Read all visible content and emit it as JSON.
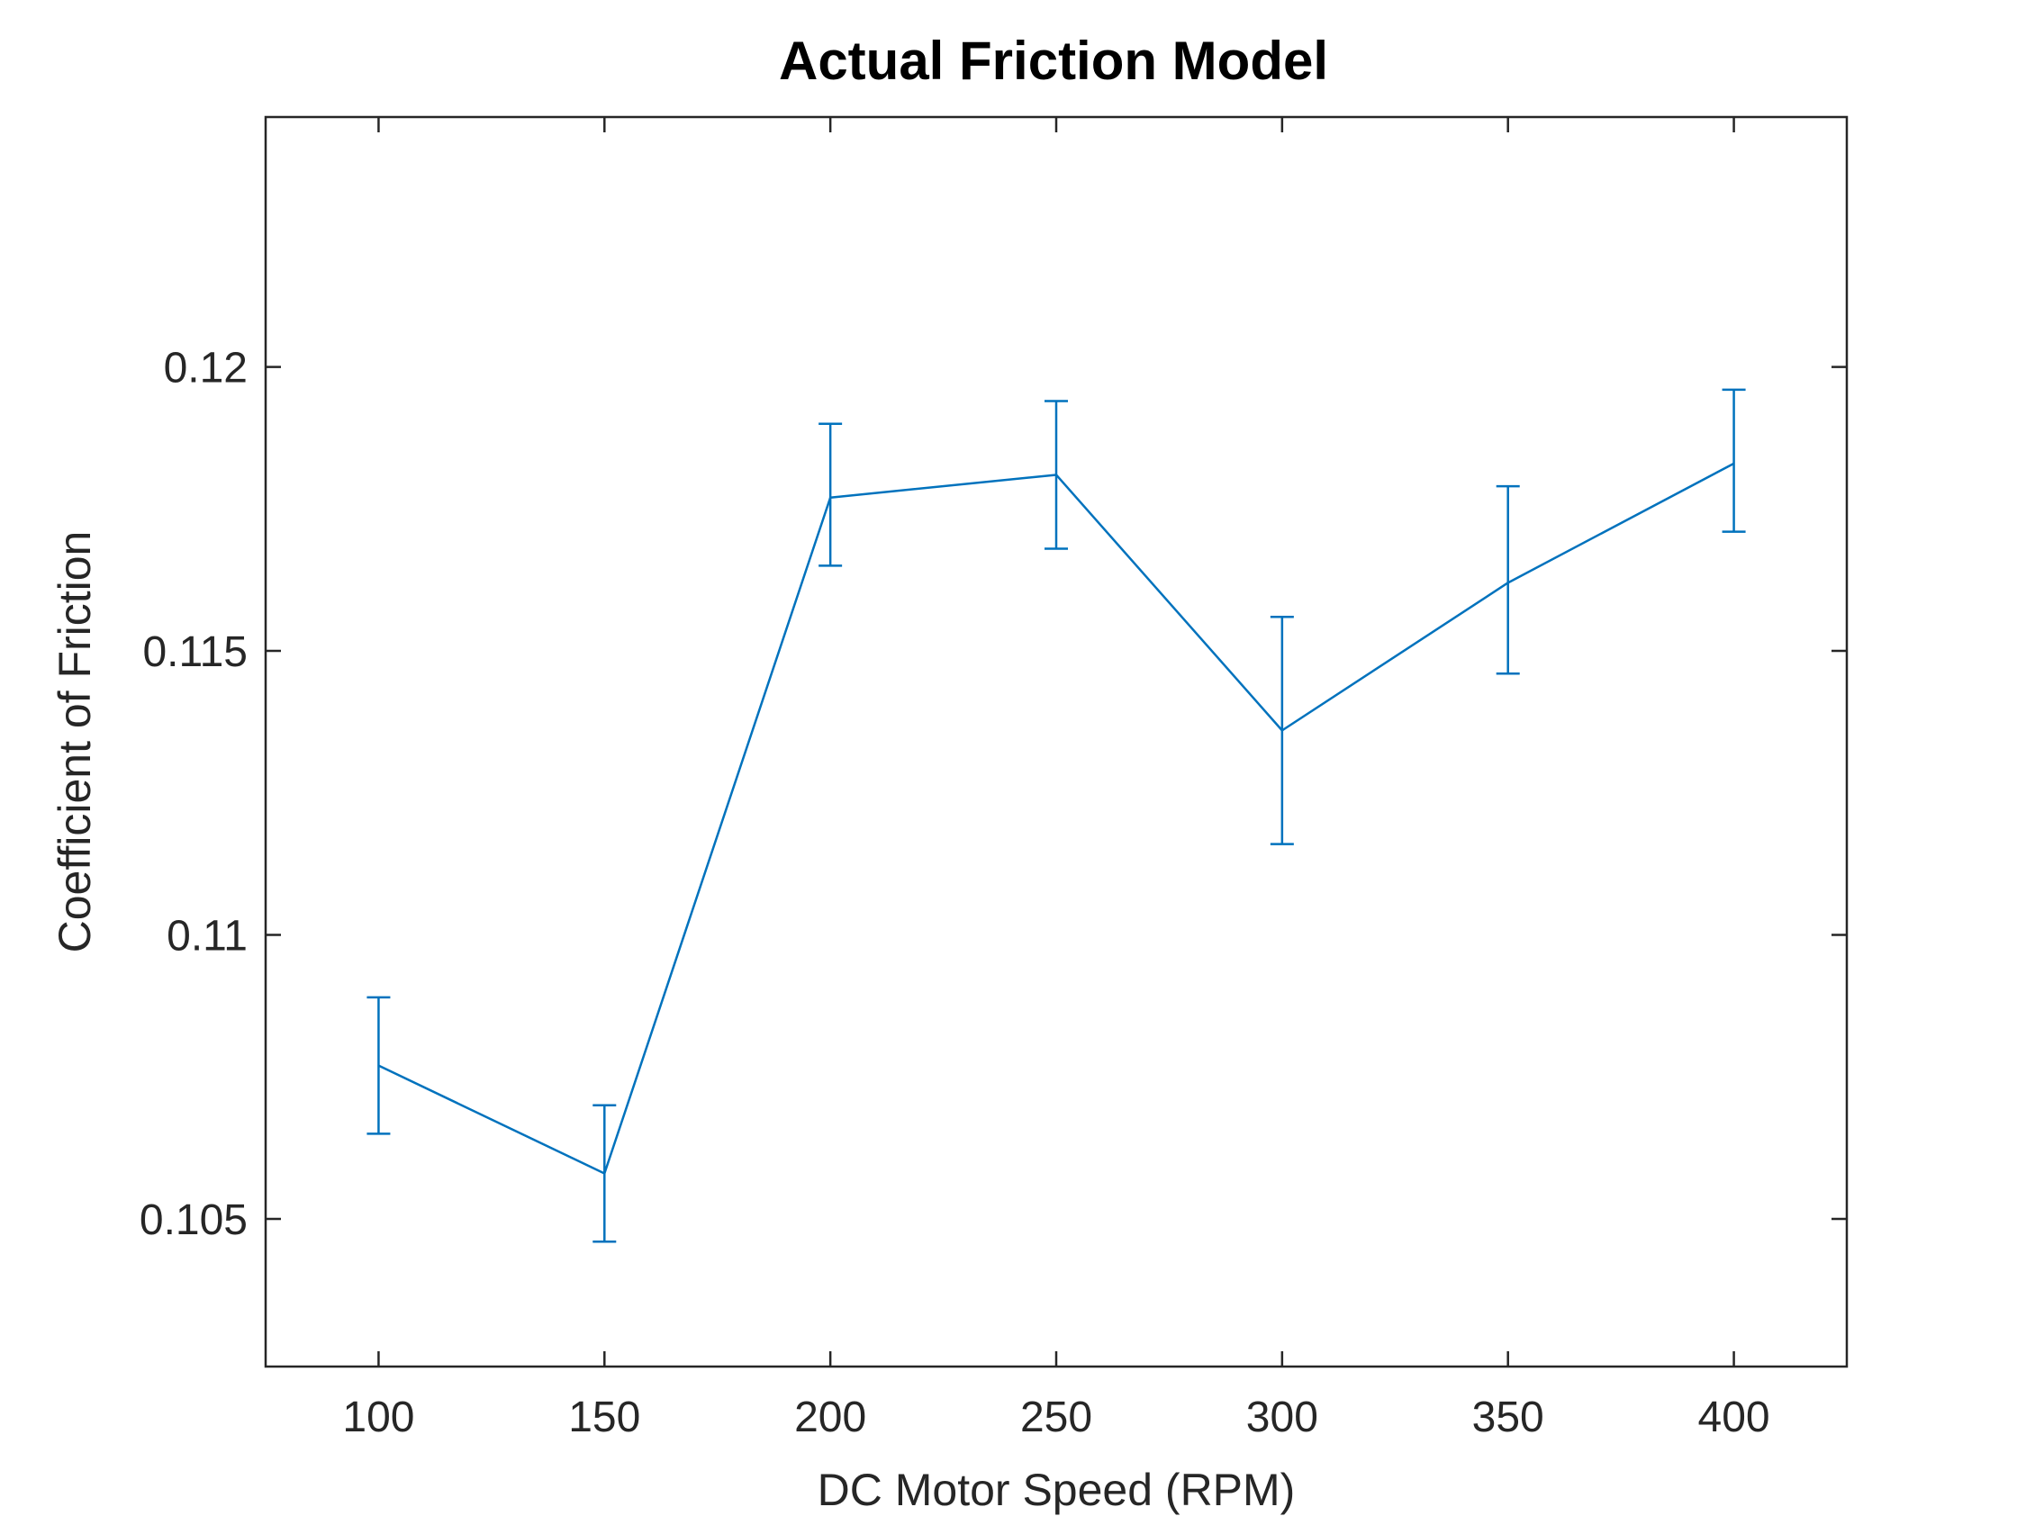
{
  "chart_data": {
    "type": "line",
    "title": "Actual Friction Model",
    "xlabel": "DC Motor Speed (RPM)",
    "ylabel": "Coefficient of Friction",
    "xlim": [
      75,
      425
    ],
    "ylim": [
      0.1024,
      0.1244
    ],
    "x_ticks": [
      100,
      150,
      200,
      250,
      300,
      350,
      400
    ],
    "x_tick_labels": [
      "100",
      "150",
      "200",
      "250",
      "300",
      "350",
      "400"
    ],
    "y_ticks": [
      0.105,
      0.11,
      0.115,
      0.12
    ],
    "y_tick_labels": [
      "0.105",
      "0.11",
      "0.115",
      "0.12"
    ],
    "grid": false,
    "error_bars": true,
    "series": [
      {
        "color": "#0072bd",
        "x": [
          100,
          150,
          200,
          250,
          300,
          350,
          400
        ],
        "y": [
          0.1077,
          0.1058,
          0.1177,
          0.1181,
          0.1136,
          0.1162,
          0.1183
        ],
        "err_lower": [
          0.1065,
          0.1046,
          0.1165,
          0.1168,
          0.1116,
          0.1146,
          0.1171
        ],
        "err_upper": [
          0.1089,
          0.107,
          0.119,
          0.1194,
          0.1156,
          0.1179,
          0.1196
        ]
      }
    ]
  }
}
